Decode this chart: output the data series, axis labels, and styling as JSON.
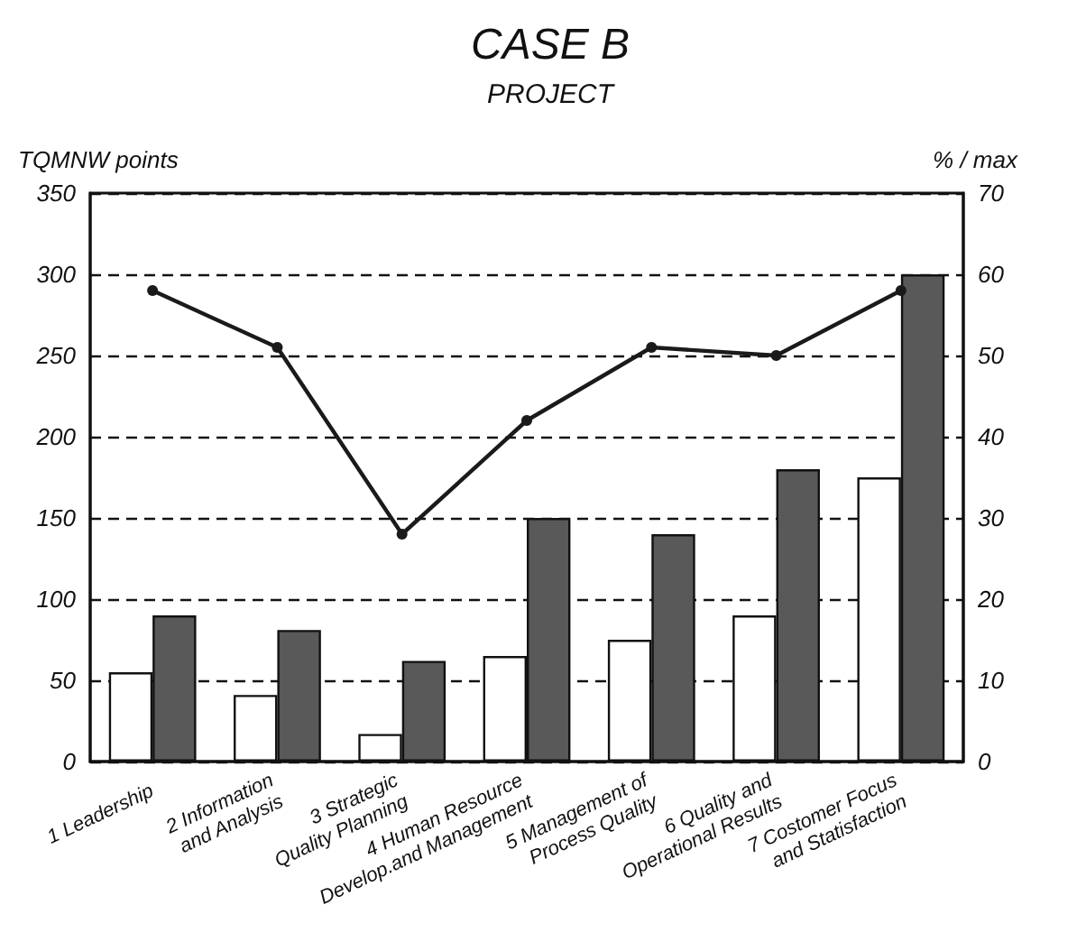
{
  "chart_data": {
    "type": "bar",
    "title": "CASE B",
    "subtitle": "PROJECT",
    "ylabel": "TQMNW points",
    "y2label": "% / max",
    "categories": [
      "1 Leadership",
      "2 Information\nand Analysis",
      "3 Strategic\nQuality Planning",
      "4 Human Resource\nDevelop.and Management",
      "5 Management of\nProcess Quality",
      "6 Quality and\nOperational Results",
      "7 Costomer Focus\nand Statisfaction"
    ],
    "series": [
      {
        "color": "#ffffff",
        "values": [
          55,
          41,
          17,
          65,
          75,
          90,
          175
        ]
      },
      {
        "color": "#595959",
        "values": [
          90,
          81,
          62,
          150,
          140,
          180,
          300
        ]
      },
      {
        "type": "line",
        "axis": "y2",
        "color": "#1a1a1a",
        "values": [
          58,
          51,
          28,
          42,
          51,
          50,
          58
        ]
      }
    ],
    "ylim": [
      0,
      350
    ],
    "yticks": [
      0,
      50,
      100,
      150,
      200,
      250,
      300,
      350
    ],
    "y2lim": [
      0,
      70
    ],
    "y2ticks": [
      0,
      10,
      20,
      30,
      40,
      50,
      60,
      70
    ],
    "grid": "y",
    "marker": "circle"
  }
}
